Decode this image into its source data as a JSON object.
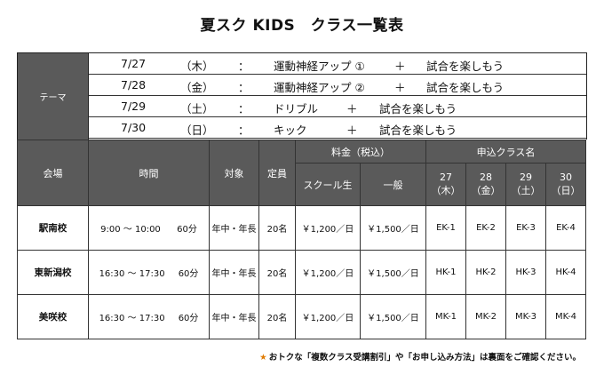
{
  "title": "夏スク KIDS　クラス一覧表",
  "theme": {
    "label": "テーマ",
    "rows": [
      {
        "date": "7/27",
        "day": "（木）",
        "colon": "：",
        "activity": "運動神経アップ ①",
        "plus": "＋",
        "extra": "試合を楽しもう"
      },
      {
        "date": "7/28",
        "day": "（金）",
        "colon": "：",
        "activity": "運動神経アップ ②",
        "plus": "＋",
        "extra": "試合を楽しもう"
      },
      {
        "date": "7/29",
        "day": "（土）",
        "colon": "：",
        "activity": "ドリブル",
        "plus": "＋",
        "extra": "試合を楽しもう"
      },
      {
        "date": "7/30",
        "day": "（日）",
        "colon": "：",
        "activity": "キック",
        "plus": "＋",
        "extra": "試合を楽しもう"
      }
    ]
  },
  "table": {
    "headers": {
      "venue": "会場",
      "time": "時間",
      "target": "対象",
      "capacity": "定員",
      "fee": "料金（税込）",
      "fee_school": "スクール生",
      "fee_general": "一般",
      "apply": "申込クラス名",
      "d27": "27",
      "w27": "（木）",
      "d28": "28",
      "w28": "（金）",
      "d29": "29",
      "w29": "（土）",
      "d30": "30",
      "w30": "（日）"
    },
    "rows": [
      {
        "venue": "駅南校",
        "time": "9:00 ～ 10:00",
        "duration": "60分",
        "target": "年中・年長",
        "capacity": "20名",
        "fee_school": "￥1,200／日",
        "fee_general": "￥1,500／日",
        "c27": "EK-1",
        "c28": "EK-2",
        "c29": "EK-3",
        "c30": "EK-4"
      },
      {
        "venue": "東新潟校",
        "time": "16:30 ～ 17:30",
        "duration": "60分",
        "target": "年中・年長",
        "capacity": "20名",
        "fee_school": "￥1,200／日",
        "fee_general": "￥1,500／日",
        "c27": "HK-1",
        "c28": "HK-2",
        "c29": "HK-3",
        "c30": "HK-4"
      },
      {
        "venue": "美咲校",
        "time": "16:30 ～ 17:30",
        "duration": "60分",
        "target": "年中・年長",
        "capacity": "20名",
        "fee_school": "￥1,200／日",
        "fee_general": "￥1,500／日",
        "c27": "MK-1",
        "c28": "MK-2",
        "c29": "MK-3",
        "c30": "MK-4"
      }
    ]
  },
  "footnote": {
    "star": "★",
    "text": "おトクな「複数クラス受講割引」や「お申し込み方法」は裏面をご確認ください。"
  }
}
